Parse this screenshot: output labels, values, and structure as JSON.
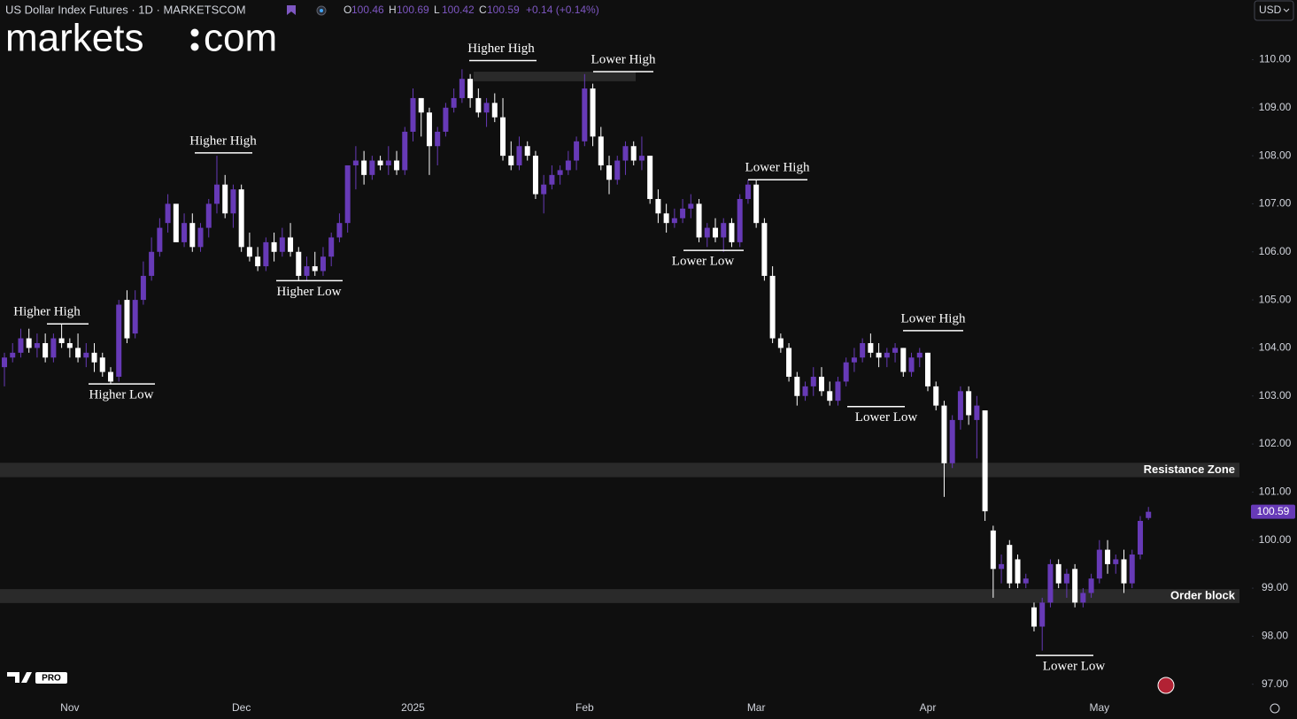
{
  "header": {
    "symbol": "US Dollar Index Futures · 1D · MARKETSCOM",
    "ohlc": [
      {
        "label": "O",
        "value": 100.46
      },
      {
        "label": "H",
        "value": 100.69
      },
      {
        "label": "L",
        "value": 100.42
      },
      {
        "label": "C",
        "value": 100.59
      }
    ],
    "change": "+0.14 (+0.14%)",
    "currency": "USD",
    "logo_left": "markets",
    "logo_right": "com",
    "badge": "PRO"
  },
  "chart_data": {
    "type": "candlestick",
    "up_color": "#673ab7",
    "down_color": "#ffffff",
    "categories": [
      null,
      null,
      null,
      null,
      null,
      null,
      null,
      null,
      "Nov",
      null,
      null,
      null,
      null,
      null,
      null,
      null,
      null,
      null,
      null,
      null,
      null,
      null,
      null,
      null,
      null,
      null,
      null,
      null,
      null,
      "Dec",
      null,
      null,
      null,
      null,
      null,
      null,
      null,
      null,
      null,
      null,
      null,
      null,
      null,
      null,
      null,
      null,
      null,
      null,
      null,
      null,
      "2025",
      null,
      null,
      null,
      null,
      null,
      null,
      null,
      null,
      null,
      null,
      null,
      null,
      null,
      null,
      null,
      null,
      null,
      null,
      null,
      null,
      "Feb",
      null,
      null,
      null,
      null,
      null,
      null,
      null,
      null,
      null,
      null,
      null,
      null,
      null,
      null,
      null,
      null,
      null,
      null,
      null,
      null,
      "Mar",
      null,
      null,
      null,
      null,
      null,
      null,
      null,
      null,
      null,
      null,
      null,
      null,
      null,
      null,
      null,
      null,
      null,
      null,
      null,
      null,
      "Apr",
      null,
      null,
      null,
      null,
      null,
      null,
      null,
      null,
      null,
      null,
      null,
      null,
      null,
      null,
      null,
      null,
      null,
      null,
      null,
      null,
      "May",
      null,
      null,
      null,
      null,
      null,
      null
    ],
    "candles": [
      [
        103.6,
        103.9,
        103.2,
        103.8
      ],
      [
        103.8,
        104.1,
        103.7,
        103.9
      ],
      [
        103.9,
        104.4,
        103.8,
        104.2
      ],
      [
        104.2,
        104.4,
        103.9,
        104.0
      ],
      [
        104.0,
        104.3,
        103.8,
        104.1
      ],
      [
        104.1,
        104.3,
        103.7,
        103.8
      ],
      [
        103.8,
        104.3,
        103.7,
        104.2
      ],
      [
        104.2,
        104.5,
        104.0,
        104.1
      ],
      [
        104.1,
        104.2,
        103.8,
        104.0
      ],
      [
        104.0,
        104.3,
        103.7,
        103.8
      ],
      [
        103.8,
        104.1,
        103.6,
        103.9
      ],
      [
        103.9,
        104.1,
        103.5,
        103.7
      ],
      [
        103.8,
        103.9,
        103.4,
        103.5
      ],
      [
        103.5,
        103.6,
        103.25,
        103.3
      ],
      [
        103.4,
        105.0,
        103.3,
        104.9
      ],
      [
        105.0,
        105.2,
        104.1,
        104.2
      ],
      [
        104.3,
        105.2,
        104.2,
        105.0
      ],
      [
        105.0,
        105.8,
        104.9,
        105.5
      ],
      [
        105.5,
        106.3,
        105.4,
        106.0
      ],
      [
        106.0,
        106.7,
        105.9,
        106.5
      ],
      [
        106.6,
        107.2,
        106.4,
        107.0
      ],
      [
        107.0,
        107.0,
        106.3,
        106.2
      ],
      [
        106.2,
        106.8,
        106.1,
        106.6
      ],
      [
        106.6,
        106.8,
        106.0,
        106.1
      ],
      [
        106.1,
        106.6,
        106.0,
        106.5
      ],
      [
        106.5,
        107.1,
        106.3,
        107.0
      ],
      [
        107.0,
        108.0,
        106.8,
        107.4
      ],
      [
        107.4,
        107.6,
        106.7,
        106.8
      ],
      [
        106.8,
        107.4,
        106.5,
        107.3
      ],
      [
        107.3,
        107.4,
        106.0,
        106.1
      ],
      [
        106.1,
        106.4,
        105.8,
        105.9
      ],
      [
        105.9,
        106.1,
        105.6,
        105.7
      ],
      [
        105.7,
        106.3,
        105.6,
        106.2
      ],
      [
        106.2,
        106.4,
        105.8,
        106.0
      ],
      [
        106.0,
        106.5,
        105.9,
        106.3
      ],
      [
        106.3,
        106.6,
        105.9,
        106.0
      ],
      [
        106.0,
        106.1,
        105.4,
        105.5
      ],
      [
        105.5,
        105.9,
        105.4,
        105.7
      ],
      [
        105.7,
        106.0,
        105.5,
        105.6
      ],
      [
        105.6,
        106.1,
        105.5,
        105.9
      ],
      [
        105.9,
        106.4,
        105.7,
        106.3
      ],
      [
        106.3,
        106.8,
        106.2,
        106.6
      ],
      [
        106.6,
        107.8,
        106.4,
        107.8
      ],
      [
        107.8,
        108.2,
        107.3,
        107.9
      ],
      [
        107.9,
        108.1,
        107.4,
        107.6
      ],
      [
        107.6,
        108.0,
        107.5,
        107.9
      ],
      [
        107.9,
        108.0,
        107.7,
        107.8
      ],
      [
        107.8,
        108.2,
        107.6,
        107.9
      ],
      [
        107.9,
        108.1,
        107.6,
        107.7
      ],
      [
        107.7,
        108.6,
        107.6,
        108.5
      ],
      [
        108.5,
        109.4,
        108.3,
        109.2
      ],
      [
        109.2,
        109.2,
        108.4,
        108.9
      ],
      [
        108.9,
        109.0,
        107.6,
        108.2
      ],
      [
        108.2,
        108.6,
        107.8,
        108.5
      ],
      [
        108.5,
        109.1,
        108.4,
        109.0
      ],
      [
        109.0,
        109.4,
        108.9,
        109.2
      ],
      [
        109.2,
        109.8,
        109.1,
        109.6
      ],
      [
        109.6,
        109.7,
        109.0,
        109.2
      ],
      [
        109.2,
        109.4,
        108.8,
        108.9
      ],
      [
        108.9,
        109.2,
        108.6,
        109.1
      ],
      [
        109.1,
        109.3,
        108.7,
        108.8
      ],
      [
        108.8,
        109.2,
        107.9,
        108.0
      ],
      [
        108.0,
        108.3,
        107.7,
        107.8
      ],
      [
        107.8,
        108.4,
        107.7,
        108.2
      ],
      [
        108.2,
        108.3,
        107.9,
        108.0
      ],
      [
        108.0,
        108.1,
        107.1,
        107.2
      ],
      [
        107.2,
        107.6,
        106.8,
        107.4
      ],
      [
        107.4,
        107.8,
        107.3,
        107.6
      ],
      [
        107.6,
        107.8,
        107.4,
        107.7
      ],
      [
        107.7,
        108.1,
        107.6,
        107.9
      ],
      [
        107.9,
        108.4,
        107.7,
        108.3
      ],
      [
        108.3,
        109.7,
        108.2,
        109.4
      ],
      [
        109.4,
        109.5,
        108.2,
        108.4
      ],
      [
        108.4,
        108.6,
        107.7,
        107.8
      ],
      [
        107.8,
        108.0,
        107.2,
        107.5
      ],
      [
        107.5,
        108.0,
        107.4,
        107.9
      ],
      [
        107.9,
        108.3,
        107.6,
        108.2
      ],
      [
        108.2,
        108.3,
        107.8,
        107.9
      ],
      [
        107.9,
        108.4,
        107.7,
        108.0
      ],
      [
        108.0,
        108.0,
        107.0,
        107.1
      ],
      [
        107.1,
        107.3,
        106.6,
        106.8
      ],
      [
        106.8,
        107.0,
        106.4,
        106.6
      ],
      [
        106.6,
        106.9,
        106.5,
        106.7
      ],
      [
        106.7,
        107.1,
        106.6,
        106.9
      ],
      [
        106.9,
        107.2,
        106.7,
        107.0
      ],
      [
        107.0,
        107.1,
        106.2,
        106.3
      ],
      [
        106.3,
        106.6,
        106.1,
        106.5
      ],
      [
        106.5,
        106.7,
        106.2,
        106.3
      ],
      [
        106.3,
        106.7,
        106.0,
        106.6
      ],
      [
        106.6,
        106.7,
        106.1,
        106.2
      ],
      [
        106.2,
        107.2,
        106.1,
        107.1
      ],
      [
        107.1,
        107.5,
        107.0,
        107.4
      ],
      [
        107.4,
        107.5,
        106.5,
        106.6
      ],
      [
        106.6,
        106.7,
        105.4,
        105.5
      ],
      [
        105.5,
        105.7,
        104.1,
        104.2
      ],
      [
        104.2,
        104.3,
        103.9,
        104.0
      ],
      [
        104.0,
        104.1,
        103.3,
        103.4
      ],
      [
        103.4,
        103.5,
        102.8,
        103.0
      ],
      [
        103.0,
        103.3,
        102.9,
        103.2
      ],
      [
        103.2,
        103.6,
        103.0,
        103.4
      ],
      [
        103.4,
        103.6,
        103.0,
        103.1
      ],
      [
        103.1,
        103.3,
        102.8,
        102.9
      ],
      [
        102.9,
        103.4,
        102.8,
        103.3
      ],
      [
        103.3,
        103.8,
        103.2,
        103.7
      ],
      [
        103.7,
        104.0,
        103.5,
        103.8
      ],
      [
        103.8,
        104.2,
        103.7,
        104.1
      ],
      [
        104.1,
        104.3,
        103.8,
        103.9
      ],
      [
        103.9,
        104.1,
        103.6,
        103.8
      ],
      [
        103.8,
        104.0,
        103.6,
        103.9
      ],
      [
        103.9,
        104.1,
        103.7,
        104.0
      ],
      [
        104.0,
        104.0,
        103.4,
        103.5
      ],
      [
        103.5,
        103.9,
        103.4,
        103.8
      ],
      [
        103.8,
        104.0,
        103.6,
        103.9
      ],
      [
        103.9,
        103.9,
        103.1,
        103.2
      ],
      [
        103.2,
        103.3,
        102.7,
        102.8
      ],
      [
        102.8,
        102.9,
        100.9,
        101.6
      ],
      [
        101.6,
        102.6,
        101.5,
        102.5
      ],
      [
        102.5,
        103.2,
        102.3,
        103.1
      ],
      [
        103.1,
        103.2,
        102.4,
        102.6
      ],
      [
        102.5,
        103.0,
        101.7,
        102.8
      ],
      [
        102.7,
        102.7,
        100.4,
        100.6
      ],
      [
        100.2,
        100.3,
        98.8,
        99.4
      ],
      [
        99.4,
        99.7,
        99.1,
        99.5
      ],
      [
        99.9,
        100.0,
        99.0,
        99.1
      ],
      [
        99.6,
        99.7,
        99.0,
        99.1
      ],
      [
        99.1,
        99.3,
        99.0,
        99.2
      ],
      [
        98.6,
        98.7,
        98.1,
        98.2
      ],
      [
        98.2,
        98.8,
        97.7,
        98.7
      ],
      [
        98.7,
        99.6,
        98.6,
        99.5
      ],
      [
        99.5,
        99.6,
        99.0,
        99.1
      ],
      [
        99.1,
        99.4,
        98.8,
        99.3
      ],
      [
        99.4,
        99.5,
        98.6,
        98.7
      ],
      [
        98.7,
        99.0,
        98.6,
        98.9
      ],
      [
        98.9,
        99.3,
        98.8,
        99.2
      ],
      [
        99.2,
        100.0,
        99.1,
        99.8
      ],
      [
        99.8,
        100.0,
        99.3,
        99.5
      ],
      [
        99.5,
        99.7,
        99.3,
        99.6
      ],
      [
        99.6,
        99.8,
        98.9,
        99.1
      ],
      [
        99.1,
        99.8,
        99.0,
        99.7
      ],
      [
        99.7,
        100.5,
        99.6,
        100.4
      ],
      [
        100.46,
        100.69,
        100.42,
        100.59
      ]
    ],
    "ylim": [
      96.7,
      110.8
    ],
    "yticks": [
      {
        "value": 97,
        "label": "97.00"
      },
      {
        "value": 98,
        "label": "98.00"
      },
      {
        "value": 99,
        "label": "99.00"
      },
      {
        "value": 100,
        "label": "100.00"
      },
      {
        "value": 101,
        "label": "101.00"
      },
      {
        "value": 102,
        "label": "102.00"
      },
      {
        "value": 103,
        "label": "103.00"
      },
      {
        "value": 104,
        "label": "104.00"
      },
      {
        "value": 105,
        "label": "105.00"
      },
      {
        "value": 106,
        "label": "106.00"
      },
      {
        "value": 107,
        "label": "107.00"
      },
      {
        "value": 108,
        "label": "108.00"
      },
      {
        "value": 109,
        "label": "109.00"
      },
      {
        "value": 110,
        "label": "110.00"
      }
    ],
    "last_price": 100.59,
    "zones": [
      {
        "label": "Resistance Zone",
        "range": [
          101.31,
          101.61
        ]
      },
      {
        "label": "Order block",
        "range": [
          98.69,
          98.98
        ]
      },
      {
        "range": [
          109.55,
          109.75
        ]
      }
    ],
    "annotations": [
      {
        "text": "Higher High",
        "level": 104.5
      },
      {
        "text": "Higher Low",
        "level": 103.25
      },
      {
        "text": "Higher High",
        "level": 108.06
      },
      {
        "text": "Higher Low",
        "level": 105.4
      },
      {
        "text": "Higher High",
        "level": 109.98
      },
      {
        "text": "Lower High",
        "level": 109.75
      },
      {
        "text": "Lower High",
        "level": 107.5
      },
      {
        "text": "Lower Low",
        "level": 106.03
      },
      {
        "text": "Lower High",
        "level": 104.36
      },
      {
        "text": "Lower Low",
        "level": 102.78
      },
      {
        "text": "Lower Low",
        "level": 97.6
      }
    ]
  }
}
